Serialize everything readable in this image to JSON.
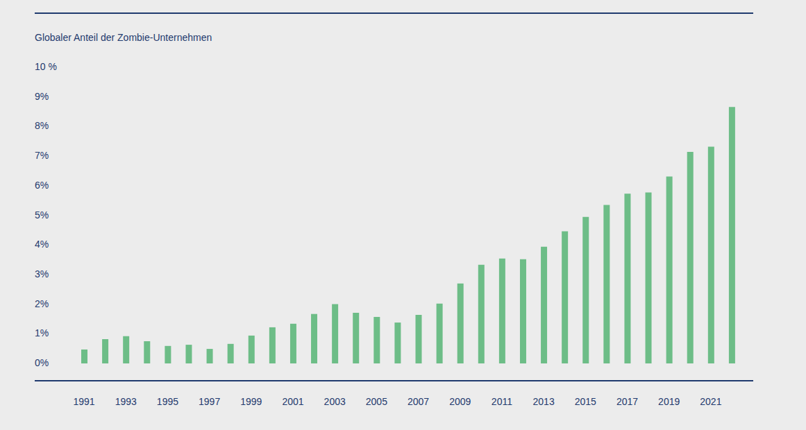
{
  "chart_data": {
    "type": "bar",
    "title": "Globaler Anteil der Zombie-Unternehmen",
    "categories": [
      "1991",
      null,
      "1993",
      null,
      "1995",
      null,
      "1997",
      null,
      "1999",
      null,
      "2001",
      null,
      "2003",
      null,
      "2005",
      null,
      "2007",
      null,
      "2009",
      null,
      "2011",
      null,
      "2013",
      null,
      "2015",
      null,
      "2017",
      null,
      "2019",
      null,
      "2021",
      null
    ],
    "values": [
      0.47,
      0.82,
      0.92,
      0.75,
      0.59,
      0.63,
      0.49,
      0.66,
      0.94,
      1.22,
      1.34,
      1.67,
      2.0,
      1.71,
      1.57,
      1.38,
      1.64,
      2.02,
      2.7,
      3.33,
      3.54,
      3.52,
      3.94,
      4.46,
      4.95,
      5.35,
      5.73,
      5.77,
      6.31,
      7.14,
      7.32,
      8.66
    ],
    "color": "#6dbd87",
    "ylim": [
      0,
      10
    ],
    "yticks": [
      {
        "value": 0,
        "label": "0%"
      },
      {
        "value": 1,
        "label": "1%"
      },
      {
        "value": 2,
        "label": "2%"
      },
      {
        "value": 3,
        "label": "3%"
      },
      {
        "value": 4,
        "label": "4%"
      },
      {
        "value": 5,
        "label": "5%"
      },
      {
        "value": 6,
        "label": "6%"
      },
      {
        "value": 7,
        "label": "7%"
      },
      {
        "value": 8,
        "label": "8%"
      },
      {
        "value": 9,
        "label": "9%"
      },
      {
        "value": 10,
        "label": "10 %"
      }
    ],
    "grid": false
  }
}
